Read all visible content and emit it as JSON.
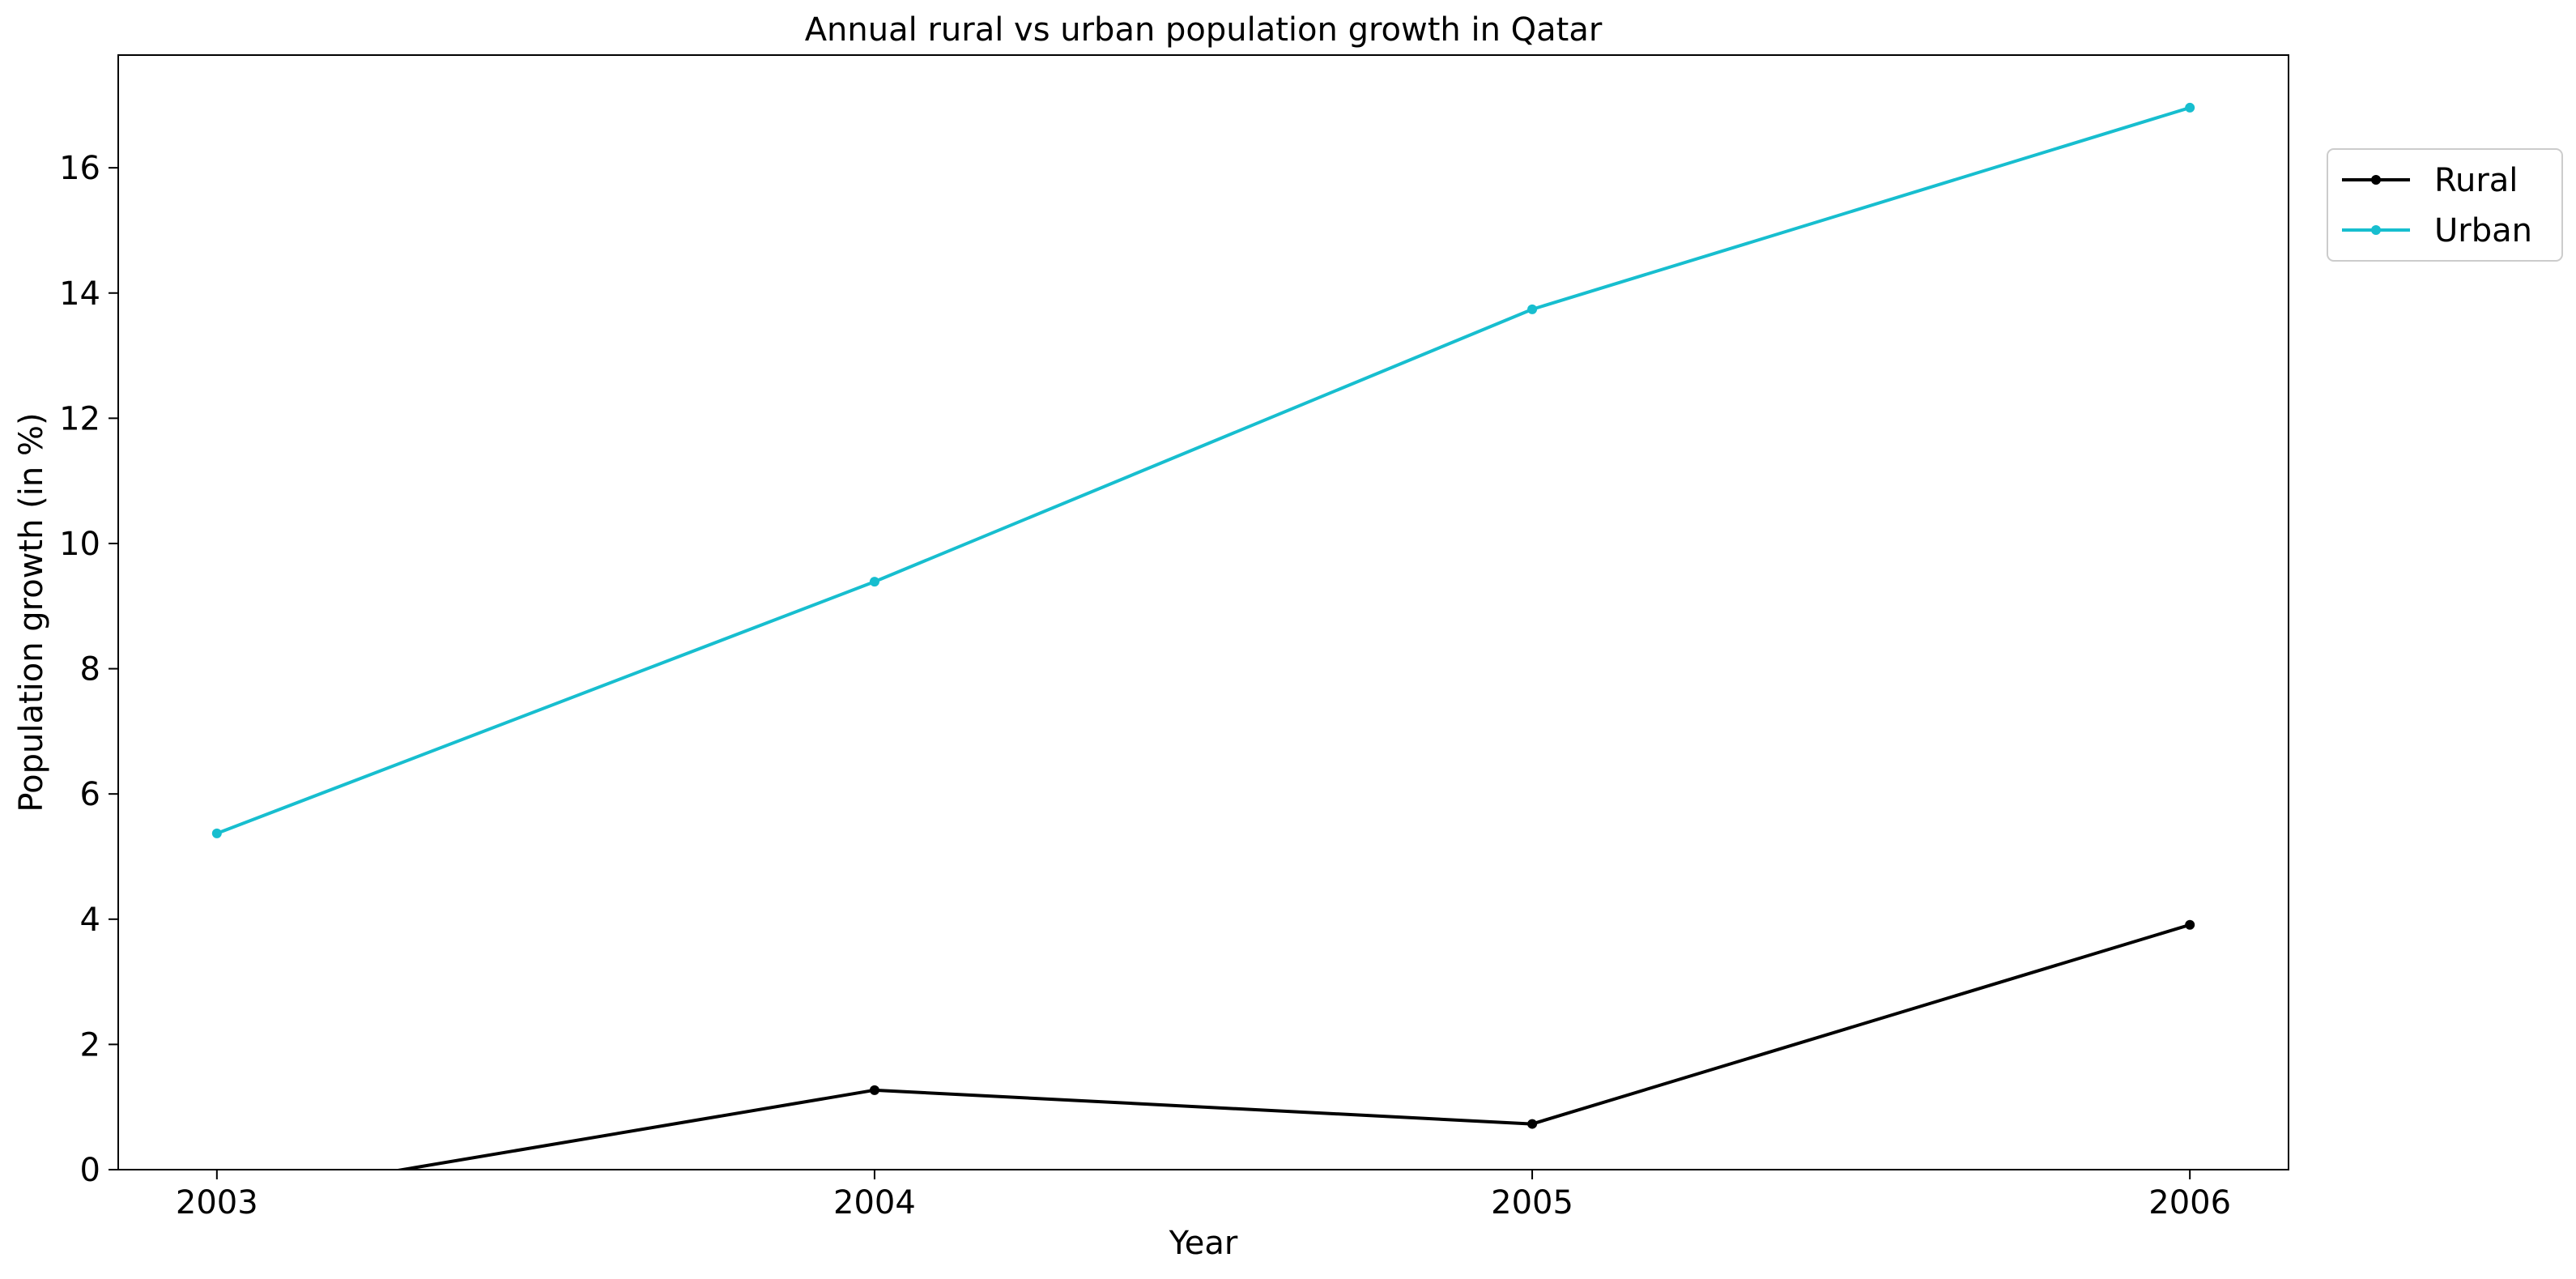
{
  "chart_data": {
    "type": "line",
    "title": "Annual rural vs urban population growth in Qatar",
    "xlabel": "Year",
    "ylabel": "Population growth (in %)",
    "x": [
      "2003",
      "2004",
      "2005",
      "2006"
    ],
    "xlim": [
      2002.85,
      2006.15
    ],
    "ylim": [
      0,
      17.8
    ],
    "yticks": [
      0,
      2,
      4,
      6,
      8,
      10,
      12,
      14,
      16
    ],
    "grid": false,
    "legend_position": "outside-top-right",
    "series": [
      {
        "name": "Rural",
        "color": "#000000",
        "values": [
          -0.5,
          1.27,
          0.73,
          3.91
        ]
      },
      {
        "name": "Urban",
        "color": "#17becf",
        "values": [
          5.37,
          9.39,
          13.74,
          16.96
        ]
      }
    ]
  }
}
